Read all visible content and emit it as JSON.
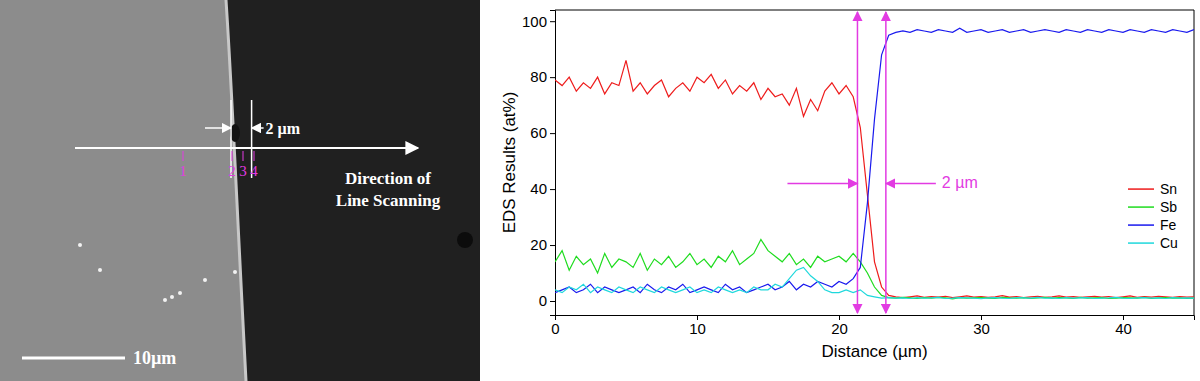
{
  "micrograph": {
    "scale_bar": {
      "length": 10,
      "label": "10µm"
    },
    "width_marker": {
      "length": 2,
      "label": "2 µm"
    },
    "points": [
      "1",
      "2",
      "3",
      "4"
    ],
    "arrow_label": [
      "Direction of",
      "Line Scanning"
    ]
  },
  "chart_data": {
    "type": "line",
    "x_label": "Distance (µm)",
    "y_label": "EDS Results (at%)",
    "x": [
      0,
      0.5,
      1,
      1.5,
      2,
      2.5,
      3,
      3.5,
      4,
      4.5,
      5,
      5.5,
      6,
      6.5,
      7,
      7.5,
      8,
      8.5,
      9,
      9.5,
      10,
      10.5,
      11,
      11.5,
      12,
      12.5,
      13,
      13.5,
      14,
      14.5,
      15,
      15.5,
      16,
      16.5,
      17,
      17.5,
      18,
      18.5,
      19,
      19.5,
      20,
      20.5,
      21,
      21.5,
      22,
      22.5,
      23,
      23.5,
      24,
      24.5,
      25,
      25.5,
      26,
      26.5,
      27,
      27.5,
      28,
      28.5,
      29,
      29.5,
      30,
      30.5,
      31,
      31.5,
      32,
      32.5,
      33,
      33.5,
      34,
      34.5,
      35,
      35.5,
      36,
      36.5,
      37,
      37.5,
      38,
      38.5,
      39,
      39.5,
      40,
      40.5,
      41,
      41.5,
      42,
      42.5,
      43,
      43.5,
      44,
      44.5,
      45
    ],
    "series": [
      {
        "name": "Sn",
        "color": "#ee1c1c",
        "values": [
          79,
          77,
          80,
          75,
          78,
          76,
          80,
          74,
          78,
          77,
          86,
          75,
          78,
          74,
          77,
          79,
          73,
          76,
          78,
          75,
          80,
          78,
          81,
          76,
          79,
          74,
          77,
          75,
          78,
          72,
          76,
          73,
          74,
          70,
          76,
          66,
          72,
          68,
          75,
          78,
          74,
          77,
          73,
          62,
          38,
          14,
          5,
          2,
          1.5,
          1.2,
          1.5,
          1.8,
          1.3,
          1.6,
          1.4,
          1.7,
          1.2,
          1.5,
          1.8,
          1.4,
          1.6,
          1.3,
          1.5,
          1.9,
          1.4,
          1.6,
          1.2,
          1.5,
          1.7,
          1.3,
          1.5,
          1.8,
          1.4,
          1.6,
          1.3,
          1.5,
          1.7,
          1.4,
          1.6,
          1.2,
          1.5,
          1.8,
          1.3,
          1.6,
          1.4,
          1.7,
          1.5,
          1.3,
          1.6,
          1.4,
          1.5
        ]
      },
      {
        "name": "Sb",
        "color": "#1fdc1f",
        "values": [
          14,
          18,
          11,
          16,
          13,
          15,
          10,
          17,
          12,
          15,
          14,
          12,
          17,
          11,
          15,
          13,
          16,
          12,
          14,
          17,
          13,
          15,
          12,
          16,
          14,
          18,
          13,
          15,
          17,
          22,
          18,
          16,
          14,
          17,
          13,
          15,
          12,
          16,
          14,
          15,
          16,
          14,
          17,
          14,
          10,
          5,
          2,
          1.2,
          1,
          1.3,
          1.1,
          0.9,
          1.2,
          1,
          1.3,
          1.1,
          0.8,
          1.2,
          1,
          1.1,
          1.2,
          1,
          0.9,
          1.3,
          1.1,
          1,
          1.2,
          0.9,
          1.1,
          1.3,
          1,
          1.2,
          1.1,
          0.9,
          1.3,
          1,
          1.1,
          1.2,
          0.9,
          1,
          1.2,
          1.1,
          1,
          1.3,
          0.9,
          1.1,
          1.2,
          1,
          1.1,
          0.9,
          1
        ]
      },
      {
        "name": "Fe",
        "color": "#1a1aee",
        "values": [
          3,
          4,
          5,
          3,
          4,
          6,
          3,
          5,
          4,
          3,
          4,
          5,
          3,
          6,
          4,
          3,
          5,
          4,
          6,
          3,
          4,
          5,
          4,
          3,
          6,
          4,
          5,
          3,
          4,
          5,
          6,
          4,
          5,
          7,
          4,
          6,
          5,
          7,
          6,
          5,
          7,
          6,
          8,
          12,
          35,
          65,
          88,
          95,
          96,
          96.5,
          96,
          97,
          96.5,
          96,
          97,
          96.5,
          96,
          97.5,
          96,
          96.5,
          97,
          96,
          96.5,
          97,
          96,
          96.5,
          97,
          96,
          96.5,
          97,
          96.5,
          96,
          97,
          96.5,
          96,
          97,
          96.5,
          96,
          97,
          96.5,
          96,
          97,
          96.5,
          96,
          97,
          96.5,
          96,
          97,
          96.5,
          96,
          97
        ]
      },
      {
        "name": "Cu",
        "color": "#1fd8dc",
        "values": [
          4,
          3,
          5,
          4,
          6,
          3,
          5,
          4,
          3,
          5,
          4,
          3,
          5,
          4,
          3,
          5,
          4,
          3,
          4,
          5,
          3,
          4,
          3,
          5,
          4,
          3,
          4,
          3,
          5,
          4,
          4,
          6,
          5,
          8,
          11,
          12,
          9,
          7,
          4,
          3,
          3,
          4,
          3,
          4,
          2,
          1.5,
          1,
          1.2,
          1,
          1.1,
          0.9,
          1.2,
          1,
          1.1,
          1.3,
          0.9,
          1,
          1.2,
          1.1,
          1,
          0.8,
          1.1,
          1.2,
          1,
          0.9,
          1.2,
          1.1,
          1,
          1.3,
          1,
          1.1,
          0.9,
          1.2,
          1,
          1.1,
          1.2,
          0.9,
          1,
          1.1,
          1.3,
          1,
          0.9,
          1.1,
          1.2,
          1,
          1.1,
          0.9,
          1.2,
          1,
          1.1,
          1
        ]
      }
    ],
    "xlim": [
      0,
      45
    ],
    "xticks": [
      0,
      10,
      20,
      30,
      40
    ],
    "ylim": [
      -5,
      104
    ],
    "yticks": [
      0,
      20,
      40,
      60,
      80,
      100
    ],
    "grid": false,
    "legend": "right",
    "annotations": [
      {
        "text": "2 µm",
        "x": [
          21.3,
          23.3
        ],
        "y": 42
      }
    ]
  }
}
